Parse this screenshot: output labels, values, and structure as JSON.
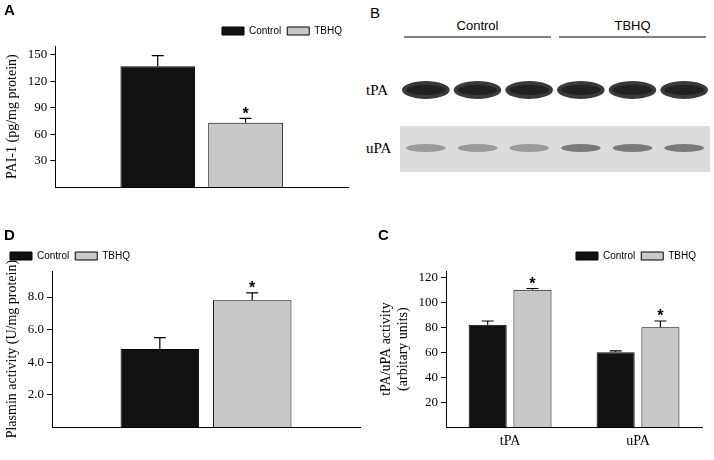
{
  "chart_data": [
    {
      "type": "bar",
      "title": "A",
      "categories": [
        null
      ],
      "series": [
        {
          "name": "Control",
          "color": "#111111",
          "values": [
            137
          ],
          "errors": [
            12
          ]
        },
        {
          "name": "TBHQ",
          "color": "#c8c8c8",
          "values": [
            73
          ],
          "errors": [
            5
          ]
        }
      ],
      "y_label": "PAI-1 (pg/mg protein)",
      "ylim": [
        0,
        160
      ],
      "yticks": [
        30,
        60,
        90,
        120,
        150
      ],
      "grid": false,
      "legend": "upper right",
      "annotations": [
        {
          "text": "*",
          "series": "TBHQ",
          "category": 0
        }
      ]
    },
    {
      "type": "bar",
      "title": "D",
      "categories": [
        null
      ],
      "series": [
        {
          "name": "Control",
          "color": "#111111",
          "values": [
            4.8
          ],
          "errors": [
            0.7
          ]
        },
        {
          "name": "TBHQ",
          "color": "#c8c8c8",
          "values": [
            7.8
          ],
          "errors": [
            0.45
          ]
        }
      ],
      "y_label": "Plasmin activity (U/mg protein)",
      "ylim": [
        0,
        9.6
      ],
      "yticks": [
        {
          "value": 2,
          "label": "2.0"
        },
        {
          "value": 4,
          "label": "4.0"
        },
        {
          "value": 6,
          "label": "6.0"
        },
        {
          "value": 8,
          "label": "8.0"
        }
      ],
      "grid": false,
      "legend": "upper left",
      "annotations": [
        {
          "text": "*",
          "series": "TBHQ",
          "category": 0
        }
      ]
    },
    {
      "type": "bar",
      "title": "C",
      "categories": [
        "tPA",
        "uPA"
      ],
      "series": [
        {
          "name": "Control",
          "color": "#111111",
          "values": [
            82,
            60
          ],
          "errors": [
            3,
            1
          ]
        },
        {
          "name": "TBHQ",
          "color": "#c8c8c8",
          "values": [
            110,
            80
          ],
          "errors": [
            1,
            5
          ]
        }
      ],
      "y_label": [
        "tPA/uPA activity",
        "(arbitary units)"
      ],
      "ylim": [
        0,
        125
      ],
      "yticks": [
        20,
        40,
        60,
        80,
        100,
        120
      ],
      "grid": false,
      "legend": "upper right",
      "annotations": [
        {
          "text": "*",
          "series": "TBHQ",
          "category": 0
        },
        {
          "text": "*",
          "series": "TBHQ",
          "category": 1
        }
      ]
    }
  ],
  "blot": {
    "title": "B",
    "groups": [
      "Control",
      "TBHQ"
    ],
    "lanes_per_group": 3,
    "rows": [
      "tPA",
      "uPA"
    ]
  }
}
